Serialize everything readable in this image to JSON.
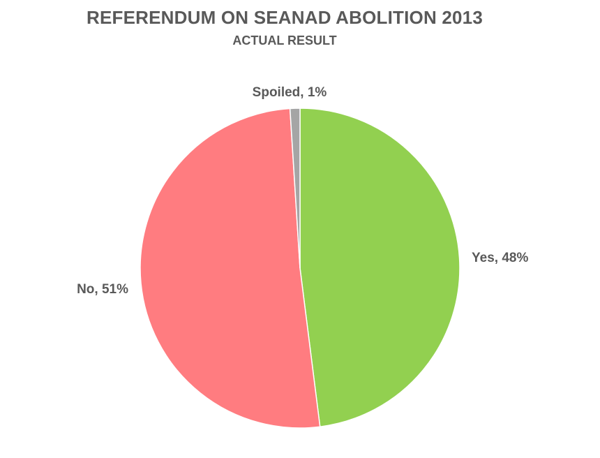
{
  "chart_data": {
    "type": "pie",
    "title": "REFERENDUM ON SEANAD ABOLITION 2013",
    "subtitle": "ACTUAL RESULT",
    "slices": [
      {
        "label": "Yes",
        "value": 48,
        "display": "Yes, 48%",
        "color": "#92d050"
      },
      {
        "label": "No",
        "value": 51,
        "display": "No, 51%",
        "color": "#ff7c80"
      },
      {
        "label": "Spoiled",
        "value": 1,
        "display": "Spoiled, 1%",
        "color": "#a5a5a5"
      }
    ]
  }
}
